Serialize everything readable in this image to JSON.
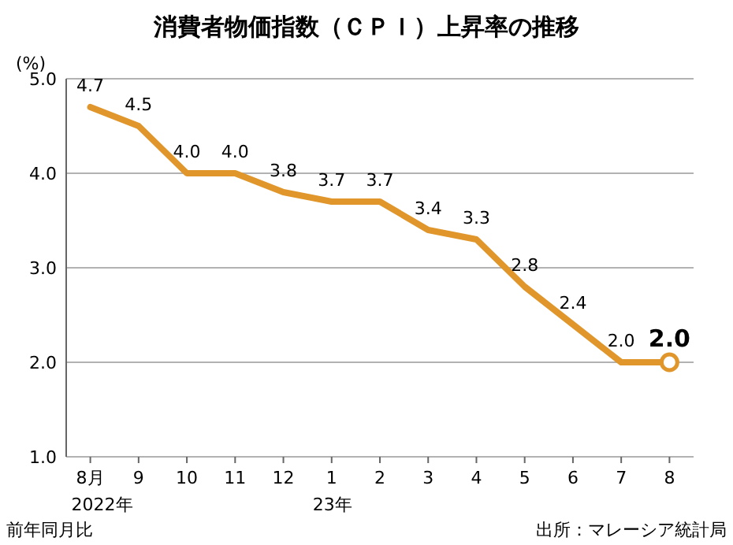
{
  "chart_data": {
    "type": "line",
    "title": "消費者物価指数（ＣＰＩ）上昇率の推移",
    "ylabel": "(%)",
    "categories": [
      "8月\n2022年",
      "9",
      "10",
      "11",
      "12",
      "1\n23年",
      "2",
      "3",
      "4",
      "5",
      "6",
      "7",
      "8"
    ],
    "values": [
      4.7,
      4.5,
      4.0,
      4.0,
      3.8,
      3.7,
      3.7,
      3.4,
      3.3,
      2.8,
      2.4,
      2.0,
      2.0
    ],
    "color": "#e0962a",
    "ylim": [
      1,
      5
    ],
    "yticks": [
      {
        "value": 1,
        "label": "1.0"
      },
      {
        "value": 2,
        "label": "2.0"
      },
      {
        "value": 3,
        "label": "3.0"
      },
      {
        "value": 4,
        "label": "4.0"
      },
      {
        "value": 5,
        "label": "5.0"
      }
    ],
    "grid": "y",
    "value_labels": [
      "4.7",
      "4.5",
      "4.0",
      "4.0",
      "3.8",
      "3.7",
      "3.7",
      "3.4",
      "3.3",
      "2.8",
      "2.4",
      "2.0",
      "2.0"
    ],
    "annotations": [
      "前年同月比",
      "出所：マレーシア統計局"
    ]
  }
}
